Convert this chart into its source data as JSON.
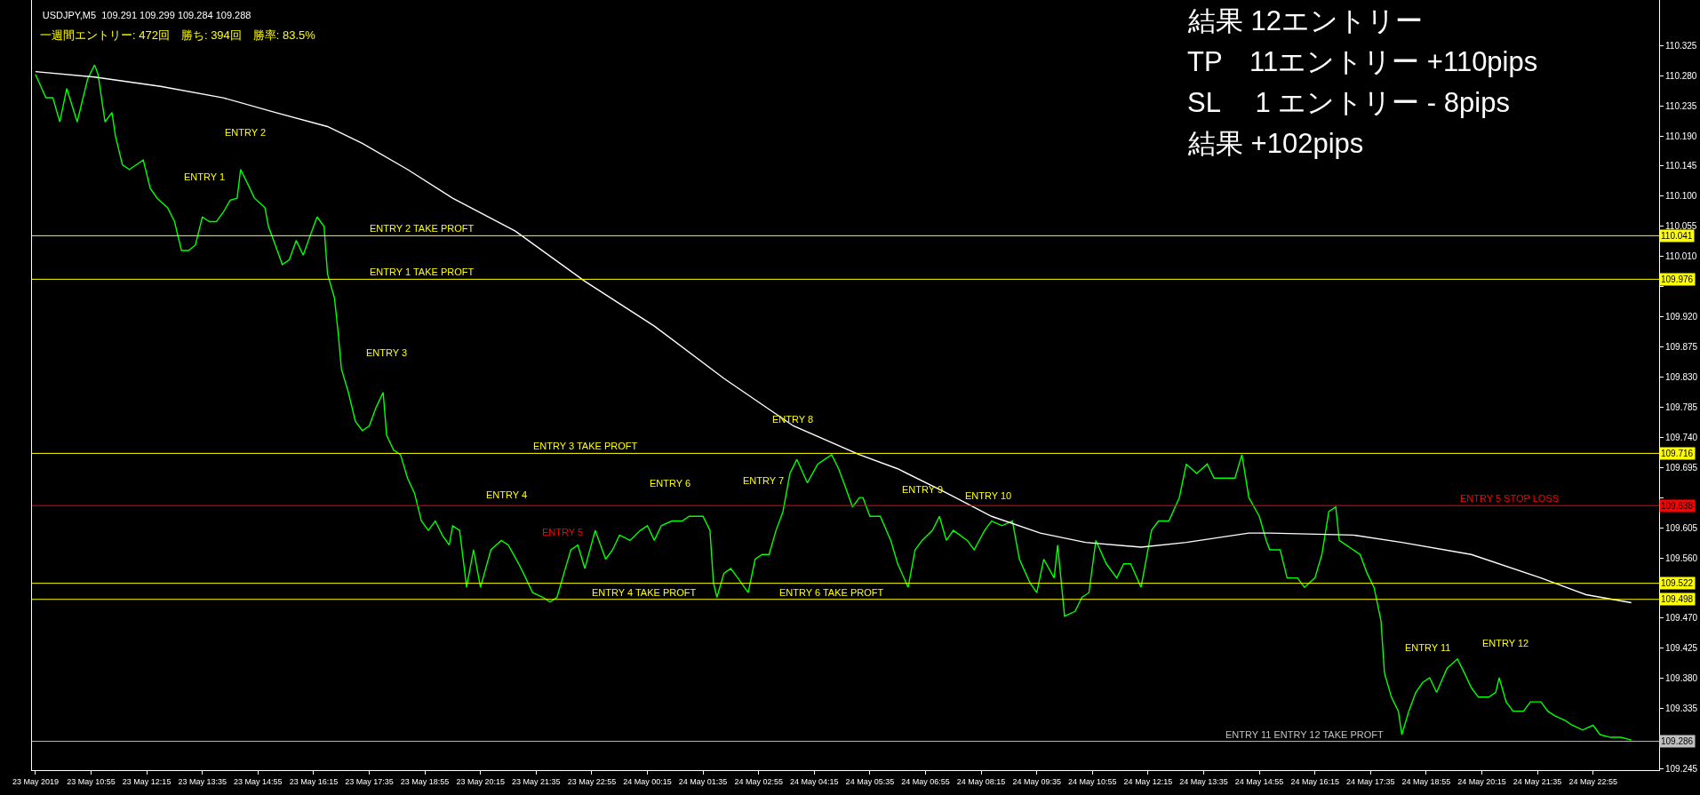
{
  "chart_data": {
    "type": "line",
    "title": "USDJPY,M5  109.291 109.299 109.284 109.288",
    "subtitle": "一週間エントリー: 472回　勝ち: 394回　勝率: 83.5%",
    "series": [
      {
        "color": "#00ff00",
        "x": [
          "2019-05-23T09:35",
          "2019-05-23T09:50",
          "2019-05-23T10:00",
          "2019-05-23T10:10",
          "2019-05-23T10:20",
          "2019-05-23T10:35",
          "2019-05-23T10:50",
          "2019-05-23T11:00",
          "2019-05-23T11:05",
          "2019-05-23T11:15",
          "2019-05-23T11:25",
          "2019-05-23T11:30",
          "2019-05-23T11:40",
          "2019-05-23T11:50",
          "2019-05-23T12:00",
          "2019-05-23T12:10",
          "2019-05-23T12:20",
          "2019-05-23T12:30",
          "2019-05-23T12:45",
          "2019-05-23T12:55",
          "2019-05-23T13:05",
          "2019-05-23T13:15",
          "2019-05-23T13:25",
          "2019-05-23T13:35",
          "2019-05-23T13:45",
          "2019-05-23T13:55",
          "2019-05-23T14:05",
          "2019-05-23T14:15",
          "2019-05-23T14:25",
          "2019-05-23T14:30",
          "2019-05-23T14:40",
          "2019-05-23T14:50",
          "2019-05-23T15:05",
          "2019-05-23T15:10",
          "2019-05-23T15:20",
          "2019-05-23T15:30",
          "2019-05-23T15:40",
          "2019-05-23T15:50",
          "2019-05-23T16:00",
          "2019-05-23T16:10",
          "2019-05-23T16:20",
          "2019-05-23T16:30",
          "2019-05-23T16:35",
          "2019-05-23T16:45",
          "2019-05-23T16:50",
          "2019-05-23T16:55",
          "2019-05-23T17:05",
          "2019-05-23T17:15",
          "2019-05-23T17:25",
          "2019-05-23T17:35",
          "2019-05-23T17:45",
          "2019-05-23T17:55",
          "2019-05-23T18:00",
          "2019-05-23T18:10",
          "2019-05-23T18:20",
          "2019-05-23T18:30",
          "2019-05-23T18:40",
          "2019-05-23T18:50",
          "2019-05-23T19:00",
          "2019-05-23T19:10",
          "2019-05-23T19:20",
          "2019-05-23T19:30",
          "2019-05-23T19:35",
          "2019-05-23T19:45",
          "2019-05-23T19:55",
          "2019-05-23T20:05",
          "2019-05-23T20:15",
          "2019-05-23T20:30",
          "2019-05-23T20:45",
          "2019-05-23T20:55",
          "2019-05-23T21:10",
          "2019-05-23T21:20",
          "2019-05-23T21:30",
          "2019-05-23T21:45",
          "2019-05-23T21:55",
          "2019-05-23T22:05",
          "2019-05-23T22:15",
          "2019-05-23T22:25",
          "2019-05-23T22:35",
          "2019-05-23T22:45",
          "2019-05-23T23:00",
          "2019-05-23T23:15",
          "2019-05-23T23:25",
          "2019-05-23T23:35",
          "2019-05-23T23:50",
          "2019-05-24T00:05",
          "2019-05-24T00:15",
          "2019-05-24T00:25",
          "2019-05-24T00:35",
          "2019-05-24T00:50",
          "2019-05-24T01:05",
          "2019-05-24T01:15",
          "2019-05-24T01:35",
          "2019-05-24T01:45",
          "2019-05-24T01:50",
          "2019-05-24T01:55",
          "2019-05-24T02:05",
          "2019-05-24T02:15",
          "2019-05-24T02:25",
          "2019-05-24T02:40",
          "2019-05-24T02:50",
          "2019-05-24T03:00",
          "2019-05-24T03:10",
          "2019-05-24T03:20",
          "2019-05-24T03:30",
          "2019-05-24T03:40",
          "2019-05-24T03:50",
          "2019-05-24T04:05",
          "2019-05-24T04:20",
          "2019-05-24T04:30",
          "2019-05-24T04:40",
          "2019-05-24T04:50",
          "2019-05-24T05:00",
          "2019-05-24T05:10",
          "2019-05-24T05:20",
          "2019-05-24T05:25",
          "2019-05-24T05:35",
          "2019-05-24T05:50",
          "2019-05-24T06:05",
          "2019-05-24T06:15",
          "2019-05-24T06:30",
          "2019-05-24T06:40",
          "2019-05-24T06:50",
          "2019-05-24T07:05",
          "2019-05-24T07:15",
          "2019-05-24T07:25",
          "2019-05-24T07:35",
          "2019-05-24T07:55",
          "2019-05-24T08:05",
          "2019-05-24T08:20",
          "2019-05-24T08:30",
          "2019-05-24T08:45",
          "2019-05-24T09:00",
          "2019-05-24T09:10",
          "2019-05-24T09:25",
          "2019-05-24T09:35",
          "2019-05-24T09:45",
          "2019-05-24T10:00",
          "2019-05-24T10:05",
          "2019-05-24T10:15",
          "2019-05-24T10:30",
          "2019-05-24T10:40",
          "2019-05-24T10:50",
          "2019-05-24T11:00",
          "2019-05-24T11:15",
          "2019-05-24T11:30",
          "2019-05-24T11:40",
          "2019-05-24T11:50",
          "2019-05-24T12:05",
          "2019-05-24T12:20",
          "2019-05-24T12:30",
          "2019-05-24T12:45",
          "2019-05-24T13:00",
          "2019-05-24T13:10",
          "2019-05-24T13:25",
          "2019-05-24T13:40",
          "2019-05-24T13:50",
          "2019-05-24T14:05",
          "2019-05-24T14:20",
          "2019-05-24T14:30",
          "2019-05-24T14:40",
          "2019-05-24T14:55",
          "2019-05-24T15:05",
          "2019-05-24T15:10",
          "2019-05-24T15:25",
          "2019-05-24T15:35",
          "2019-05-24T15:50",
          "2019-05-24T16:00",
          "2019-05-24T16:15",
          "2019-05-24T16:25",
          "2019-05-24T16:35",
          "2019-05-24T16:45",
          "2019-05-24T16:50",
          "2019-05-24T17:00",
          "2019-05-24T17:10",
          "2019-05-24T17:20",
          "2019-05-24T17:30",
          "2019-05-24T17:40",
          "2019-05-24T17:50",
          "2019-05-24T17:55",
          "2019-05-24T18:05",
          "2019-05-24T18:15",
          "2019-05-24T18:20",
          "2019-05-24T18:30",
          "2019-05-24T18:40",
          "2019-05-24T18:50",
          "2019-05-24T19:00",
          "2019-05-24T19:10",
          "2019-05-24T19:25",
          "2019-05-24T19:40",
          "2019-05-24T19:50",
          "2019-05-24T20:00",
          "2019-05-24T20:10",
          "2019-05-24T20:25",
          "2019-05-24T20:35",
          "2019-05-24T20:40",
          "2019-05-24T20:50",
          "2019-05-24T21:00",
          "2019-05-24T21:15",
          "2019-05-24T21:25",
          "2019-05-24T21:40",
          "2019-05-24T21:50",
          "2019-05-24T22:00",
          "2019-05-24T22:15",
          "2019-05-24T22:25",
          "2019-05-24T22:40",
          "2019-05-24T22:55",
          "2019-05-24T23:05",
          "2019-05-24T23:20",
          "2019-05-24T23:35",
          "2019-05-24T23:50"
        ],
        "values": [
          110.282,
          110.247,
          110.247,
          110.211,
          110.261,
          110.211,
          110.275,
          110.296,
          110.282,
          110.211,
          110.225,
          110.19,
          110.147,
          110.14,
          110.147,
          110.154,
          110.112,
          110.097,
          110.083,
          110.062,
          110.019,
          110.019,
          110.027,
          110.069,
          110.062,
          110.062,
          110.076,
          110.094,
          110.097,
          110.14,
          110.119,
          110.097,
          110.083,
          110.055,
          110.027,
          109.998,
          110.005,
          110.034,
          110.012,
          110.041,
          110.069,
          110.055,
          109.984,
          109.948,
          109.899,
          109.842,
          109.807,
          109.764,
          109.75,
          109.757,
          109.785,
          109.807,
          109.743,
          109.721,
          109.714,
          109.679,
          109.657,
          109.615,
          109.601,
          109.615,
          109.594,
          109.579,
          109.608,
          109.601,
          109.516,
          109.572,
          109.516,
          109.572,
          109.586,
          109.579,
          109.551,
          109.53,
          109.508,
          109.501,
          109.494,
          109.501,
          109.537,
          109.572,
          109.579,
          109.544,
          109.601,
          109.558,
          109.572,
          109.594,
          109.586,
          109.601,
          109.608,
          109.586,
          109.608,
          109.615,
          109.615,
          109.622,
          109.622,
          109.601,
          109.523,
          109.501,
          109.537,
          109.544,
          109.53,
          109.508,
          109.558,
          109.565,
          109.565,
          109.601,
          109.629,
          109.686,
          109.707,
          109.672,
          109.7,
          109.707,
          109.714,
          109.693,
          109.665,
          109.636,
          109.65,
          109.65,
          109.622,
          109.622,
          109.586,
          109.551,
          109.516,
          109.572,
          109.586,
          109.601,
          109.622,
          109.586,
          109.601,
          109.586,
          109.572,
          109.601,
          109.615,
          109.608,
          109.615,
          109.558,
          109.523,
          109.508,
          109.558,
          109.53,
          109.579,
          109.473,
          109.48,
          109.501,
          109.508,
          109.586,
          109.551,
          109.53,
          109.551,
          109.551,
          109.516,
          109.601,
          109.615,
          109.615,
          109.65,
          109.7,
          109.686,
          109.7,
          109.679,
          109.679,
          109.679,
          109.714,
          109.65,
          109.622,
          109.586,
          109.572,
          109.572,
          109.53,
          109.53,
          109.516,
          109.53,
          109.565,
          109.629,
          109.636,
          109.586,
          109.579,
          109.572,
          109.565,
          109.537,
          109.516,
          109.466,
          109.388,
          109.352,
          109.331,
          109.296,
          109.331,
          109.359,
          109.374,
          109.381,
          109.359,
          109.395,
          109.409,
          109.388,
          109.366,
          109.352,
          109.352,
          109.359,
          109.381,
          109.345,
          109.331,
          109.331,
          109.345,
          109.345,
          109.331,
          109.324,
          109.317,
          109.31,
          109.303,
          109.31,
          109.296,
          109.292,
          109.292,
          109.288
        ]
      },
      {
        "color": "#ffffff",
        "x": [
          "2019-05-23T09:35",
          "2019-05-23T11:00",
          "2019-05-23T12:35",
          "2019-05-23T14:05",
          "2019-05-23T15:20",
          "2019-05-23T16:35",
          "2019-05-23T17:25",
          "2019-05-23T18:30",
          "2019-05-23T19:35",
          "2019-05-23T21:05",
          "2019-05-23T22:45",
          "2019-05-24T00:25",
          "2019-05-24T02:05",
          "2019-05-24T03:45",
          "2019-05-24T05:20",
          "2019-05-24T06:15",
          "2019-05-24T07:25",
          "2019-05-24T08:30",
          "2019-05-24T09:40",
          "2019-05-24T10:45",
          "2019-05-24T12:05",
          "2019-05-24T13:10",
          "2019-05-24T14:40",
          "2019-05-24T15:10",
          "2019-05-24T17:10",
          "2019-05-24T18:20",
          "2019-05-24T20:00",
          "2019-05-24T21:40",
          "2019-05-24T22:45",
          "2019-05-24T23:50"
        ],
        "values": [
          110.286,
          110.278,
          110.264,
          110.247,
          110.225,
          110.204,
          110.179,
          110.14,
          110.097,
          110.048,
          109.973,
          109.906,
          109.828,
          109.757,
          109.714,
          109.693,
          109.657,
          109.622,
          109.597,
          109.583,
          109.576,
          109.583,
          109.597,
          109.597,
          109.594,
          109.583,
          109.565,
          109.53,
          109.505,
          109.493
        ]
      }
    ],
    "xlim": [
      "2019-05-23T09:30",
      "2019-05-25T00:30"
    ],
    "xticks": [
      {
        "value": "2019-05-23T09:35",
        "label": "23 May 2019"
      },
      {
        "value": "2019-05-23T10:55",
        "label": "23 May 10:55"
      },
      {
        "value": "2019-05-23T12:15",
        "label": "23 May 12:15"
      },
      {
        "value": "2019-05-23T13:35",
        "label": "23 May 13:35"
      },
      {
        "value": "2019-05-23T14:55",
        "label": "23 May 14:55"
      },
      {
        "value": "2019-05-23T16:15",
        "label": "23 May 16:15"
      },
      {
        "value": "2019-05-23T17:35",
        "label": "23 May 17:35"
      },
      {
        "value": "2019-05-23T18:55",
        "label": "23 May 18:55"
      },
      {
        "value": "2019-05-23T20:15",
        "label": "23 May 20:15"
      },
      {
        "value": "2019-05-23T21:35",
        "label": "23 May 21:35"
      },
      {
        "value": "2019-05-23T22:55",
        "label": "23 May 22:55"
      },
      {
        "value": "2019-05-24T00:15",
        "label": "24 May 00:15"
      },
      {
        "value": "2019-05-24T01:35",
        "label": "24 May 01:35"
      },
      {
        "value": "2019-05-24T02:55",
        "label": "24 May 02:55"
      },
      {
        "value": "2019-05-24T04:15",
        "label": "24 May 04:15"
      },
      {
        "value": "2019-05-24T05:35",
        "label": "24 May 05:35"
      },
      {
        "value": "2019-05-24T06:55",
        "label": "24 May 06:55"
      },
      {
        "value": "2019-05-24T08:15",
        "label": "24 May 08:15"
      },
      {
        "value": "2019-05-24T09:35",
        "label": "24 May 09:35"
      },
      {
        "value": "2019-05-24T10:55",
        "label": "24 May 10:55"
      },
      {
        "value": "2019-05-24T12:15",
        "label": "24 May 12:15"
      },
      {
        "value": "2019-05-24T13:35",
        "label": "24 May 13:35"
      },
      {
        "value": "2019-05-24T14:55",
        "label": "24 May 14:55"
      },
      {
        "value": "2019-05-24T16:15",
        "label": "24 May 16:15"
      },
      {
        "value": "2019-05-24T17:35",
        "label": "24 May 17:35"
      },
      {
        "value": "2019-05-24T18:55",
        "label": "24 May 18:55"
      },
      {
        "value": "2019-05-24T20:15",
        "label": "24 May 20:15"
      },
      {
        "value": "2019-05-24T21:35",
        "label": "24 May 21:35"
      },
      {
        "value": "2019-05-24T22:55",
        "label": "24 May 22:55"
      }
    ],
    "ylim": [
      109.243,
      110.393
    ],
    "yticks": [
      {
        "value": 110.325,
        "label": "110.325"
      },
      {
        "value": 110.28,
        "label": "110.280"
      },
      {
        "value": 110.235,
        "label": "110.235"
      },
      {
        "value": 110.19,
        "label": "110.190"
      },
      {
        "value": 110.145,
        "label": "110.145"
      },
      {
        "value": 110.1,
        "label": "110.100"
      },
      {
        "value": 110.055,
        "label": "110.055"
      },
      {
        "value": 110.01,
        "label": "110.010"
      },
      {
        "value": 109.965,
        "label": null
      },
      {
        "value": 109.92,
        "label": "109.920"
      },
      {
        "value": 109.875,
        "label": "109.875"
      },
      {
        "value": 109.83,
        "label": "109.830"
      },
      {
        "value": 109.785,
        "label": "109.785"
      },
      {
        "value": 109.74,
        "label": "109.740"
      },
      {
        "value": 109.695,
        "label": "109.695"
      },
      {
        "value": 109.65,
        "label": null
      },
      {
        "value": 109.605,
        "label": "109.605"
      },
      {
        "value": 109.56,
        "label": "109.560"
      },
      {
        "value": 109.515,
        "label": null
      },
      {
        "value": 109.47,
        "label": "109.470"
      },
      {
        "value": 109.425,
        "label": "109.425"
      },
      {
        "value": 109.38,
        "label": "109.380"
      },
      {
        "value": 109.335,
        "label": "109.335"
      },
      {
        "value": 109.29,
        "label": null
      },
      {
        "value": 109.245,
        "label": "109.245"
      }
    ],
    "ref_lines": [
      {
        "axis": "y",
        "value": 110.041,
        "label": "110.041",
        "color": "#ffff00"
      },
      {
        "axis": "y",
        "value": 109.976,
        "label": "109.976",
        "color": "#ffff00"
      },
      {
        "axis": "y",
        "value": 109.716,
        "label": "109.716",
        "color": "#ffff00"
      },
      {
        "axis": "y",
        "value": 109.638,
        "label": "109.638",
        "color": "#ff0000"
      },
      {
        "axis": "y",
        "value": 109.522,
        "label": "109.522",
        "color": "#ffff00"
      },
      {
        "axis": "y",
        "value": 109.498,
        "label": "109.498",
        "color": "#ffff00"
      },
      {
        "axis": "y",
        "value": 109.286,
        "label": "109.286",
        "color": "#c0c0c0"
      }
    ],
    "annotations": [
      "結果 12エントリー",
      "TP　11エントリー +110pips",
      "SL　 1 エントリー - 8pips",
      "結果 +102pips",
      "ENTRY 1",
      "ENTRY 2",
      "ENTRY 3",
      "ENTRY 4",
      "ENTRY 5",
      "ENTRY 6",
      "ENTRY 7",
      "ENTRY 8",
      "ENTRY 9",
      "ENTRY 10",
      "ENTRY 11",
      "ENTRY 12",
      {
        "text": "ENTRY 2 TAKE PROFT",
        "x": "2019-05-23T18:50",
        "y": 110.041
      },
      {
        "text": "ENTRY 1 TAKE PROFT",
        "x": "2019-05-23T18:50",
        "y": 109.976
      },
      {
        "text": "ENTRY 3 TAKE PROFT",
        "x": "2019-05-23T22:45",
        "y": 109.716
      },
      {
        "text": "ENTRY 5 STOP LOSS",
        "x": "2019-05-24T20:55",
        "y": 109.638
      },
      {
        "text": "ENTRY 4 TAKE PROFT",
        "x": "2019-05-24T00:10",
        "y": 109.498
      },
      {
        "text": "ENTRY 6 TAKE PROFT",
        "x": "2019-05-24T04:40",
        "y": 109.498
      },
      {
        "text": "ENTRY 11 ENTRY 12 TAKE PROFT",
        "x": "2019-05-24T16:00",
        "y": 109.286
      }
    ],
    "grid": false
  }
}
